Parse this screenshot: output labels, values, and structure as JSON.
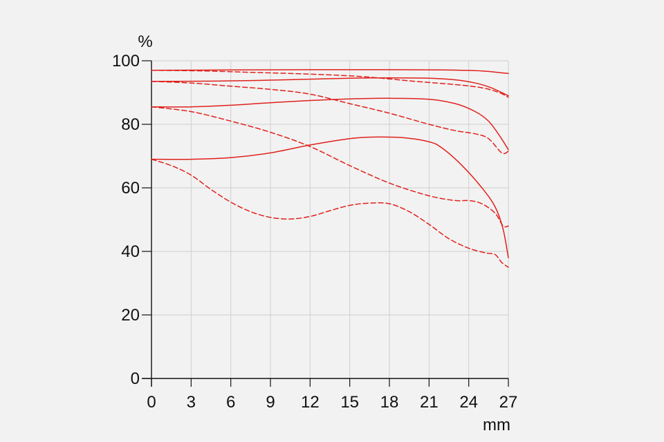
{
  "chart_data": {
    "type": "line",
    "ylabel": "%",
    "xlabel": "mm",
    "xlim": [
      0,
      27
    ],
    "ylim": [
      0,
      100
    ],
    "x_ticks": [
      0,
      3,
      6,
      9,
      12,
      15,
      18,
      21,
      24,
      27
    ],
    "y_ticks": [
      0,
      20,
      40,
      60,
      80,
      100
    ],
    "grid": true,
    "colors": {
      "line": "#e0201b",
      "grid": "#cfcfcf",
      "axis": "#111111",
      "background": "#f2f2f2"
    },
    "series": [
      {
        "style": "solid",
        "points": [
          [
            0,
            97
          ],
          [
            6,
            97.1
          ],
          [
            12,
            97.2
          ],
          [
            18,
            97.2
          ],
          [
            22,
            97.1
          ],
          [
            25,
            96.8
          ],
          [
            26.5,
            96.2
          ],
          [
            27,
            96
          ]
        ]
      },
      {
        "style": "dashed",
        "points": [
          [
            0,
            97
          ],
          [
            4,
            96.8
          ],
          [
            8,
            96.3
          ],
          [
            12,
            95.8
          ],
          [
            16,
            95
          ],
          [
            20,
            93.5
          ],
          [
            23,
            92.5
          ],
          [
            25,
            91.5
          ],
          [
            26.3,
            90
          ],
          [
            27,
            88.5
          ]
        ]
      },
      {
        "style": "solid",
        "points": [
          [
            0,
            93.5
          ],
          [
            5,
            93.6
          ],
          [
            10,
            94
          ],
          [
            15,
            94.5
          ],
          [
            18,
            94.6
          ],
          [
            21,
            94.5
          ],
          [
            23,
            94
          ],
          [
            24.5,
            93
          ],
          [
            25.7,
            91.5
          ],
          [
            27,
            89
          ]
        ]
      },
      {
        "style": "dashed",
        "points": [
          [
            0,
            93.5
          ],
          [
            3,
            93
          ],
          [
            6,
            92
          ],
          [
            9,
            91
          ],
          [
            12,
            89.5
          ],
          [
            15,
            86.5
          ],
          [
            18,
            83.5
          ],
          [
            21,
            80
          ],
          [
            23,
            78
          ],
          [
            24.5,
            77
          ],
          [
            25.5,
            75.5
          ],
          [
            26.5,
            71
          ],
          [
            27,
            71.5
          ]
        ]
      },
      {
        "style": "solid",
        "points": [
          [
            0,
            85.5
          ],
          [
            3,
            85.5
          ],
          [
            6,
            86
          ],
          [
            9,
            86.8
          ],
          [
            12,
            87.5
          ],
          [
            15,
            88
          ],
          [
            18,
            88.2
          ],
          [
            21,
            87.9
          ],
          [
            23,
            86.5
          ],
          [
            24.5,
            84
          ],
          [
            25.5,
            81
          ],
          [
            26.4,
            76
          ],
          [
            27,
            72
          ]
        ]
      },
      {
        "style": "dashed",
        "points": [
          [
            0,
            85.5
          ],
          [
            3,
            84
          ],
          [
            6,
            81
          ],
          [
            9,
            77.5
          ],
          [
            12,
            73
          ],
          [
            15,
            67
          ],
          [
            18,
            61.5
          ],
          [
            21,
            57.5
          ],
          [
            23,
            56
          ],
          [
            24,
            56
          ],
          [
            25,
            55
          ],
          [
            26,
            52
          ],
          [
            26.6,
            48
          ],
          [
            27,
            48
          ]
        ]
      },
      {
        "style": "solid",
        "points": [
          [
            0,
            69
          ],
          [
            3,
            69
          ],
          [
            6,
            69.5
          ],
          [
            9,
            71
          ],
          [
            12,
            73.5
          ],
          [
            15,
            75.5
          ],
          [
            17,
            76
          ],
          [
            19,
            75.8
          ],
          [
            21,
            74.5
          ],
          [
            22,
            72.5
          ],
          [
            23.5,
            67
          ],
          [
            25,
            60
          ],
          [
            26,
            54
          ],
          [
            26.6,
            47
          ],
          [
            27,
            38
          ]
        ]
      },
      {
        "style": "dashed",
        "points": [
          [
            0,
            69
          ],
          [
            1.5,
            67
          ],
          [
            3,
            64
          ],
          [
            4.5,
            59.5
          ],
          [
            6,
            55.5
          ],
          [
            7.5,
            52.5
          ],
          [
            9,
            50.7
          ],
          [
            10.5,
            50.2
          ],
          [
            12,
            51
          ],
          [
            13.5,
            52.8
          ],
          [
            15,
            54.5
          ],
          [
            16.5,
            55.2
          ],
          [
            18,
            55
          ],
          [
            19.5,
            52.5
          ],
          [
            21,
            48.5
          ],
          [
            22.5,
            44
          ],
          [
            24,
            41
          ],
          [
            25.3,
            39.5
          ],
          [
            26,
            39
          ],
          [
            26.5,
            36.5
          ],
          [
            27,
            35
          ]
        ]
      }
    ]
  }
}
